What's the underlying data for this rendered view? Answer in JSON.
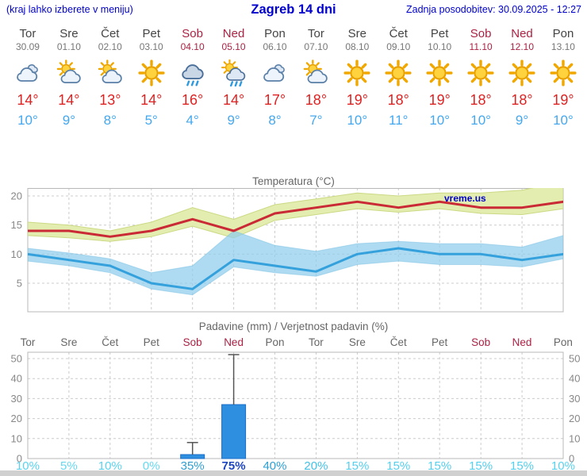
{
  "header": {
    "hint": "(kraj lahko izberete v meniju)",
    "title": "Zagreb 14 dni",
    "updated": "Zadnja posodobitev: 30.09.2025 - 12:27"
  },
  "colors": {
    "header-blue": "#0000cc",
    "weekend-red": "#aa2244",
    "weekday-gray": "#444444",
    "date-gray": "#777777",
    "tmax-red": "#dd2222",
    "tmin-blue": "#44a8f0",
    "temp-line-max": "#c92a35",
    "temp-line-min": "#35a1dc",
    "band-max": "#e3edaf",
    "band-min": "#8fcdec",
    "bar-blue": "#2e8fe0",
    "watermark-blue": "#0000cc",
    "footer-gray": "#d0d0d0"
  },
  "days": [
    {
      "name": "Tor",
      "date": "30.09",
      "weekend": false,
      "icon": "cloudy",
      "tmax": "14°",
      "tmin": "10°"
    },
    {
      "name": "Sre",
      "date": "01.10",
      "weekend": false,
      "icon": "partly",
      "tmax": "14°",
      "tmin": "9°"
    },
    {
      "name": "Čet",
      "date": "02.10",
      "weekend": false,
      "icon": "partly",
      "tmax": "13°",
      "tmin": "8°"
    },
    {
      "name": "Pet",
      "date": "03.10",
      "weekend": false,
      "icon": "sunny",
      "tmax": "14°",
      "tmin": "5°"
    },
    {
      "name": "Sob",
      "date": "04.10",
      "weekend": true,
      "icon": "rain",
      "tmax": "16°",
      "tmin": "4°"
    },
    {
      "name": "Ned",
      "date": "05.10",
      "weekend": true,
      "icon": "showers",
      "tmax": "14°",
      "tmin": "9°"
    },
    {
      "name": "Pon",
      "date": "06.10",
      "weekend": false,
      "icon": "cloudy",
      "tmax": "17°",
      "tmin": "8°"
    },
    {
      "name": "Tor",
      "date": "07.10",
      "weekend": false,
      "icon": "partly",
      "tmax": "18°",
      "tmin": "7°"
    },
    {
      "name": "Sre",
      "date": "08.10",
      "weekend": false,
      "icon": "sunny",
      "tmax": "19°",
      "tmin": "10°"
    },
    {
      "name": "Čet",
      "date": "09.10",
      "weekend": false,
      "icon": "sunny",
      "tmax": "18°",
      "tmin": "11°"
    },
    {
      "name": "Pet",
      "date": "10.10",
      "weekend": false,
      "icon": "sunny",
      "tmax": "19°",
      "tmin": "10°"
    },
    {
      "name": "Sob",
      "date": "11.10",
      "weekend": true,
      "icon": "sunny",
      "tmax": "18°",
      "tmin": "10°"
    },
    {
      "name": "Ned",
      "date": "12.10",
      "weekend": true,
      "icon": "sunny",
      "tmax": "18°",
      "tmin": "9°"
    },
    {
      "name": "Pon",
      "date": "13.10",
      "weekend": false,
      "icon": "sunny",
      "tmax": "19°",
      "tmin": "10°"
    }
  ],
  "chart_data": [
    {
      "type": "line",
      "title": "Temperatura (°C)",
      "watermark": "vreme.us",
      "x_labels": [
        "Tor",
        "Sre",
        "Čet",
        "Pet",
        "Sob",
        "Ned",
        "Pon",
        "Tor",
        "Sre",
        "Čet",
        "Pet",
        "Sob",
        "Ned",
        "Pon"
      ],
      "ylim": [
        0,
        21.5
      ],
      "yticks": [
        5,
        10,
        15,
        20
      ],
      "grid": true,
      "legend": "none",
      "series": [
        {
          "name": "max-temperature",
          "values": [
            14,
            14,
            13,
            14,
            16,
            14,
            17,
            18,
            19,
            18,
            19,
            18,
            18,
            19
          ]
        },
        {
          "name": "min-temperature",
          "values": [
            10,
            9,
            8,
            5,
            4,
            9,
            8,
            7,
            10,
            11,
            10,
            10,
            9,
            10
          ]
        }
      ],
      "bands": [
        {
          "name": "max-temperature-range",
          "upper": [
            15.5,
            15,
            14,
            15.5,
            18,
            16,
            18.5,
            19.5,
            20.5,
            20,
            20.5,
            20.5,
            21,
            22.5
          ],
          "lower": [
            13.2,
            12.8,
            12.2,
            13,
            14.8,
            12.8,
            15.8,
            16.8,
            17.8,
            17.2,
            17.8,
            17,
            16.8,
            17.8
          ]
        },
        {
          "name": "min-temperature-range",
          "upper": [
            11,
            10.2,
            9.2,
            6.8,
            8,
            14,
            11.5,
            10.5,
            11.8,
            12.2,
            11.8,
            11.8,
            11.2,
            13.2
          ],
          "lower": [
            8.8,
            8,
            6.8,
            4,
            3,
            7.8,
            6.8,
            6.2,
            8.2,
            8.8,
            8.2,
            8.2,
            7.8,
            9.2
          ]
        }
      ]
    },
    {
      "type": "bar",
      "title": "Padavine (mm) / Verjetnost padavin (%)",
      "x_labels": [
        "Tor",
        "Sre",
        "Čet",
        "Pet",
        "Sob",
        "Ned",
        "Pon",
        "Tor",
        "Sre",
        "Čet",
        "Pet",
        "Sob",
        "Ned",
        "Pon"
      ],
      "ylim": [
        0,
        53
      ],
      "yticks": [
        0,
        10,
        20,
        30,
        40,
        50
      ],
      "precip_mm": [
        0,
        0,
        0,
        0,
        2,
        27,
        0,
        0,
        0,
        0,
        0,
        0,
        0,
        0
      ],
      "whisker_max": [
        0,
        0,
        0,
        0,
        8,
        52,
        0,
        0,
        0,
        0,
        0,
        0,
        0,
        0
      ],
      "probability": [
        {
          "label": "10%",
          "value": 10,
          "color": "#5ad2ee"
        },
        {
          "label": "5%",
          "value": 5,
          "color": "#68d8f0"
        },
        {
          "label": "10%",
          "value": 10,
          "color": "#5ad2ee"
        },
        {
          "label": "0%",
          "value": 0,
          "color": "#68d8f0"
        },
        {
          "label": "35%",
          "value": 35,
          "color": "#2f9ed2"
        },
        {
          "label": "75%",
          "value": 75,
          "color": "#1e46c0",
          "bold": true
        },
        {
          "label": "40%",
          "value": 40,
          "color": "#2f9ed2"
        },
        {
          "label": "20%",
          "value": 20,
          "color": "#43c0e6"
        },
        {
          "label": "15%",
          "value": 15,
          "color": "#55cfee"
        },
        {
          "label": "15%",
          "value": 15,
          "color": "#55cfee"
        },
        {
          "label": "15%",
          "value": 15,
          "color": "#55cfee"
        },
        {
          "label": "15%",
          "value": 15,
          "color": "#55cfee"
        },
        {
          "label": "15%",
          "value": 15,
          "color": "#55cfee"
        },
        {
          "label": "10%",
          "value": 10,
          "color": "#5ad2ee"
        }
      ]
    }
  ]
}
